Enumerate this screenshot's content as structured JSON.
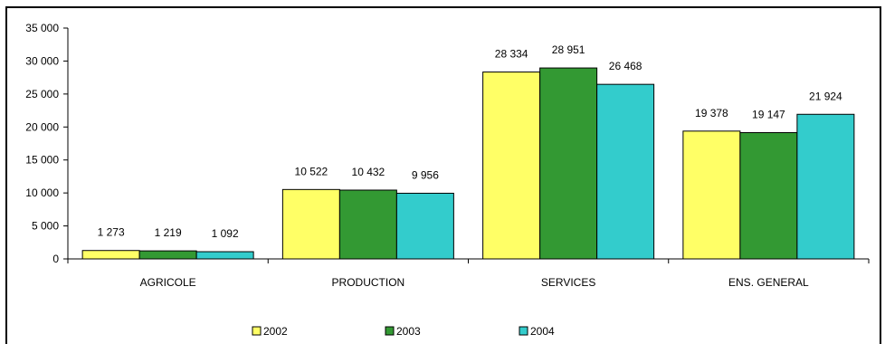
{
  "chart_data": {
    "type": "bar",
    "categories": [
      "AGRICOLE",
      "PRODUCTION",
      "SERVICES",
      "ENS. GENERAL"
    ],
    "series": [
      {
        "name": "2002",
        "values": [
          1273,
          10522,
          28334,
          19378
        ],
        "color": "#FFFF66"
      },
      {
        "name": "2003",
        "values": [
          1219,
          10432,
          28951,
          19147
        ],
        "color": "#339933"
      },
      {
        "name": "2004",
        "values": [
          1092,
          9956,
          26468,
          21924
        ],
        "color": "#33CCCC"
      }
    ],
    "data_labels": [
      [
        "1 273",
        "10 522",
        "28 334",
        "19 378"
      ],
      [
        "1 219",
        "10 432",
        "28 951",
        "19 147"
      ],
      [
        "1 092",
        "9 956",
        "26 468",
        "21 924"
      ]
    ],
    "yticks": [
      0,
      5000,
      10000,
      15000,
      20000,
      25000,
      30000,
      35000
    ],
    "ytick_labels": [
      "0",
      "5 000",
      "10 000",
      "15 000",
      "20 000",
      "25 000",
      "30 000",
      "35 000"
    ],
    "ylim": [
      0,
      35000
    ],
    "title": "",
    "xlabel": "",
    "ylabel": "",
    "grid": false,
    "legend": "bottom"
  }
}
